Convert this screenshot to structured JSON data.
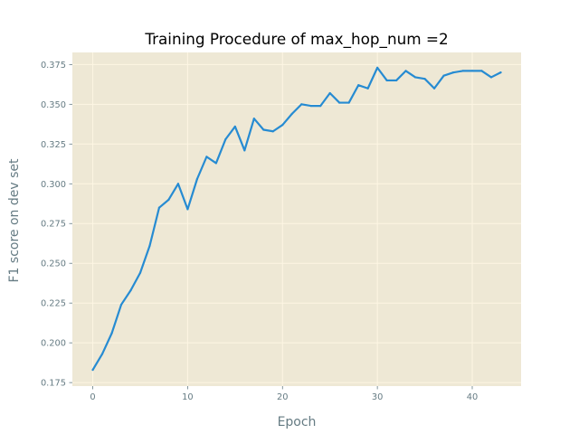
{
  "chart_data": {
    "type": "line",
    "title": "Training Procedure of max_hop_num =2",
    "xlabel": "Epoch",
    "ylabel": "F1 score on dev set",
    "xlim": [
      -2.15,
      45.15
    ],
    "ylim": [
      0.1728,
      0.3826
    ],
    "xticks": [
      0,
      10,
      20,
      30,
      40
    ],
    "yticks": [
      0.175,
      0.2,
      0.225,
      0.25,
      0.275,
      0.3,
      0.325,
      0.35,
      0.375
    ],
    "ytick_labels": [
      "0.175",
      "0.200",
      "0.225",
      "0.250",
      "0.275",
      "0.300",
      "0.325",
      "0.350",
      "0.375"
    ],
    "grid": true,
    "background_color": "#eee8d5",
    "grid_color": "#fdf6e3",
    "series": [
      {
        "color": "#268bd2",
        "x": [
          0,
          1,
          2,
          3,
          4,
          5,
          6,
          7,
          8,
          9,
          10,
          11,
          12,
          13,
          14,
          15,
          16,
          17,
          18,
          19,
          20,
          21,
          22,
          23,
          24,
          25,
          26,
          27,
          28,
          29,
          30,
          31,
          32,
          33,
          34,
          35,
          36,
          37,
          38,
          39,
          40,
          41,
          42,
          43
        ],
        "y": [
          0.183,
          0.193,
          0.206,
          0.224,
          0.233,
          0.244,
          0.261,
          0.285,
          0.29,
          0.3,
          0.284,
          0.303,
          0.317,
          0.313,
          0.328,
          0.336,
          0.321,
          0.341,
          0.334,
          0.333,
          0.337,
          0.344,
          0.35,
          0.349,
          0.349,
          0.357,
          0.351,
          0.351,
          0.362,
          0.36,
          0.373,
          0.365,
          0.365,
          0.371,
          0.367,
          0.366,
          0.36,
          0.368,
          0.37,
          0.371,
          0.371,
          0.371,
          0.367,
          0.37
        ]
      }
    ]
  }
}
